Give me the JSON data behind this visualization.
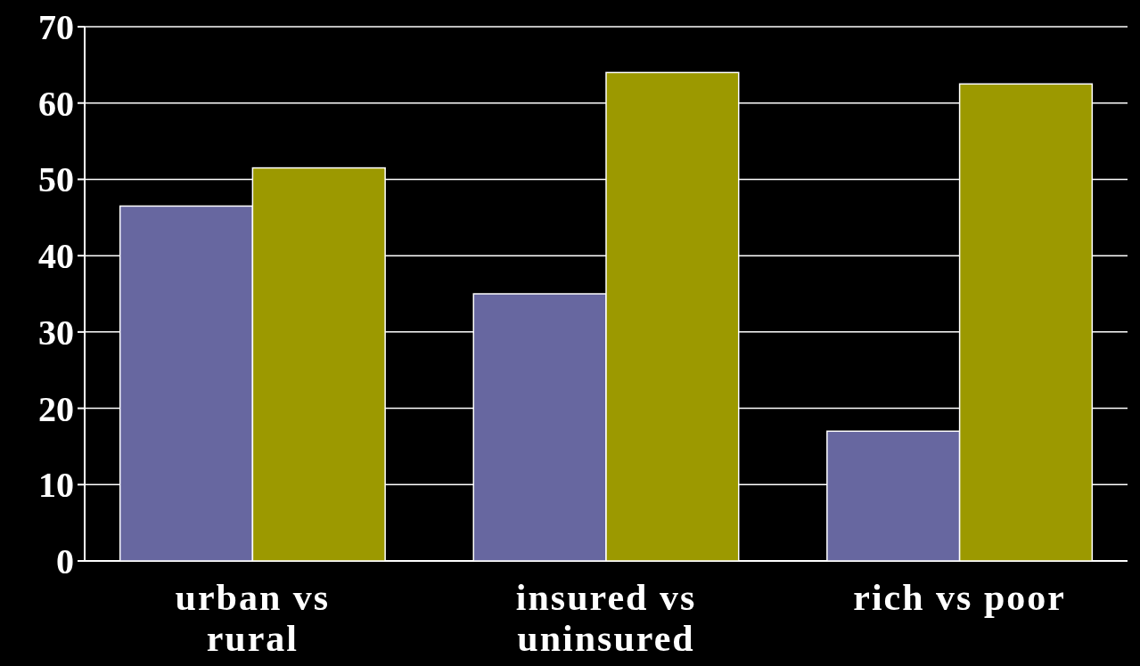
{
  "chart_data": {
    "type": "bar",
    "categories": [
      "urban vs rural",
      "insured vs uninsured",
      "rich vs poor"
    ],
    "series": [
      {
        "color": "#6767a0",
        "values": [
          46.5,
          35,
          17
        ]
      },
      {
        "color": "#9c9900",
        "values": [
          51.5,
          64,
          62.5
        ]
      }
    ],
    "ylim": [
      0,
      70
    ],
    "yticks": [
      0,
      10,
      20,
      30,
      40,
      50,
      60,
      70
    ],
    "grid": true
  }
}
